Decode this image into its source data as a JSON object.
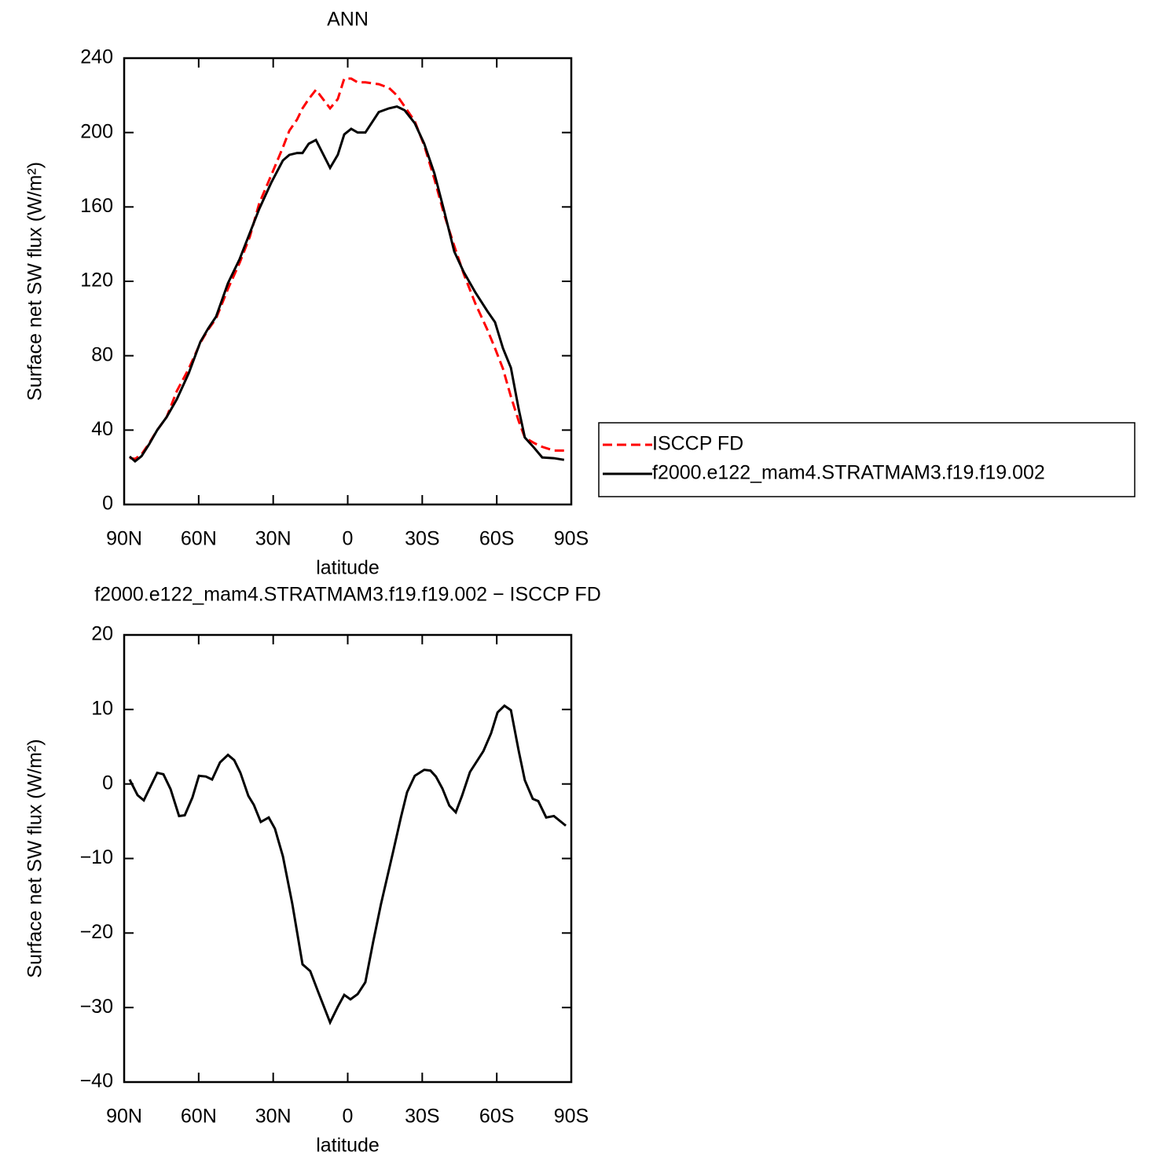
{
  "chart_data": [
    {
      "type": "line",
      "title": "ANN",
      "xlabel": "latitude",
      "ylabel": "Surface net SW flux (W/m²)",
      "x": [
        87.8,
        85.6,
        83,
        79.9,
        76.7,
        72.9,
        68.8,
        64,
        59.3,
        56.2,
        53,
        48.2,
        43.5,
        39.4,
        35.6,
        30.8,
        26.1,
        23.5,
        20.4,
        18.2,
        15.7,
        12.8,
        7.1,
        4,
        1.4,
        -1.4,
        -4,
        -7.1,
        -12.5,
        -16.6,
        -19.8,
        -22.9,
        -27,
        -30.8,
        -34.9,
        -38.8,
        -42.9,
        -46.7,
        -51.4,
        -56.2,
        -59.3,
        -62.5,
        -65.7,
        -68.8,
        -71.3,
        -75.1,
        -78.3,
        -83,
        -87.1
      ],
      "series": [
        {
          "name": "ISCCP FD",
          "color": "#ff0000",
          "dash": "dashed",
          "values": [
            25,
            24.5,
            27,
            33,
            40,
            47,
            61,
            73,
            87,
            94,
            100,
            116,
            130,
            144,
            162,
            177,
            192,
            201,
            207,
            213,
            218,
            223,
            213,
            218,
            229,
            229,
            227,
            227,
            226,
            224,
            220,
            214,
            206,
            193,
            175,
            156,
            139,
            124,
            108,
            94,
            84,
            73,
            58,
            45,
            36,
            33,
            31,
            29,
            29
          ]
        },
        {
          "name": "f2000.e122_mam4.STRATMAM3.f19.f19.002",
          "color": "#000000",
          "dash": "solid",
          "values": [
            25.8,
            23.2,
            26,
            32.5,
            40,
            47,
            56.6,
            70.6,
            87.5,
            94.6,
            101,
            119,
            132,
            146,
            159,
            173,
            185,
            188,
            189,
            189,
            194,
            196,
            181,
            188,
            199,
            202,
            200,
            200,
            211,
            213,
            214,
            212,
            205,
            194,
            178,
            158,
            136,
            125,
            114,
            104,
            98,
            84,
            73.5,
            51.5,
            36,
            30.4,
            25.3,
            24.9,
            24
          ]
        }
      ],
      "xlim": [
        90,
        -90
      ],
      "xticks": [
        {
          "value": 90,
          "label": "90N"
        },
        {
          "value": 60,
          "label": "60N"
        },
        {
          "value": 30,
          "label": "30N"
        },
        0,
        {
          "value": -30,
          "label": "30S"
        },
        {
          "value": -60,
          "label": "60S"
        },
        {
          "value": -90,
          "label": "90S"
        }
      ],
      "ylim": [
        0,
        240
      ],
      "yticks": [
        0,
        40,
        80,
        120,
        160,
        200,
        240
      ],
      "legend": "right"
    },
    {
      "type": "line",
      "title": "f2000.e122_mam4.STRATMAM3.f19.f19.002 − ISCCP FD",
      "xlabel": "latitude",
      "ylabel": "Surface net SW flux (W/m²)",
      "x": [
        87.8,
        84.6,
        82.1,
        76.7,
        74.2,
        71.3,
        67.9,
        65.6,
        62.5,
        59.9,
        57.1,
        54.6,
        51.4,
        48.2,
        45.7,
        43.2,
        40,
        37.8,
        35,
        31.8,
        29.3,
        26.1,
        22.3,
        18.2,
        15.1,
        11.9,
        7.1,
        4,
        1.4,
        -1.1,
        -4,
        -7.1,
        -10.3,
        -13.4,
        -18.2,
        -21.4,
        -23.9,
        -27,
        -30.8,
        -33.3,
        -35.5,
        -38.1,
        -40.9,
        -43.5,
        -46,
        -49.2,
        -54.6,
        -57.7,
        -60.3,
        -63.1,
        -65.7,
        -68.8,
        -71.3,
        -74.5,
        -76.7,
        -79.9,
        -83,
        -87.8
      ],
      "series": [
        {
          "color": "#000000",
          "dash": "solid",
          "values": [
            0.6,
            -1.5,
            -2.2,
            1.5,
            1.3,
            -0.7,
            -4.3,
            -4.2,
            -1.8,
            1.1,
            1.0,
            0.6,
            2.9,
            3.9,
            3.2,
            1.5,
            -1.6,
            -2.8,
            -5.1,
            -4.5,
            -6.0,
            -9.7,
            -16.1,
            -24.2,
            -25.1,
            -27.9,
            -32,
            -29.9,
            -28.3,
            -28.9,
            -28.2,
            -26.6,
            -21.1,
            -16.1,
            -9.2,
            -4.5,
            -1.1,
            1.1,
            1.9,
            1.8,
            1.0,
            -0.6,
            -2.9,
            -3.8,
            -1.6,
            1.6,
            4.4,
            6.8,
            9.6,
            10.5,
            9.9,
            4.5,
            0.5,
            -2.0,
            -2.3,
            -4.5,
            -4.3,
            -5.6
          ]
        }
      ],
      "xlim": [
        90,
        -90
      ],
      "xticks": [
        {
          "value": 90,
          "label": "90N"
        },
        {
          "value": 60,
          "label": "60N"
        },
        {
          "value": 30,
          "label": "30N"
        },
        0,
        {
          "value": -30,
          "label": "30S"
        },
        {
          "value": -60,
          "label": "60S"
        },
        {
          "value": -90,
          "label": "90S"
        }
      ],
      "ylim": [
        -40,
        20
      ],
      "yticks": [
        {
          "value": -40,
          "label": "−40"
        },
        {
          "value": -30,
          "label": "−30"
        },
        {
          "value": -20,
          "label": "−20"
        },
        {
          "value": -10,
          "label": "−10"
        },
        0,
        10,
        20
      ]
    }
  ]
}
